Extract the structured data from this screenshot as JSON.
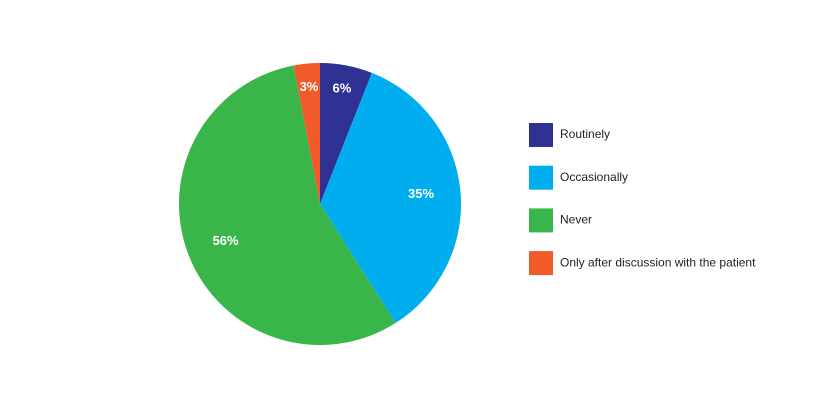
{
  "chart_data": {
    "type": "pie",
    "categories": [
      "Routinely",
      "Occasionally",
      "Never",
      "Only after discussion with the patient"
    ],
    "values": [
      6,
      35,
      56,
      3
    ],
    "value_labels": [
      "6%",
      "35%",
      "56%",
      "3%"
    ],
    "colors": [
      "#2e3192",
      "#00aeef",
      "#39b54a",
      "#f15a29"
    ]
  }
}
